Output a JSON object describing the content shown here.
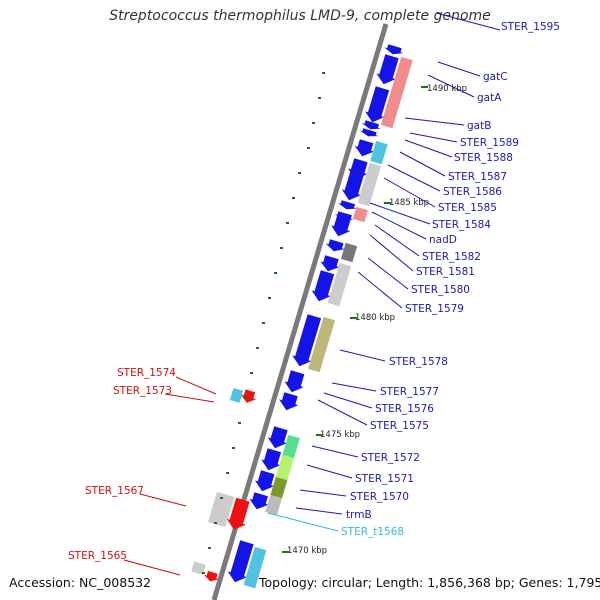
{
  "title": "Streptococcus thermophilus LMD-9, complete genome",
  "footer": {
    "accession": "Accession: NC_008532",
    "topology": "Topology: circular; Length: 1,856,368 bp; Genes: 1,795"
  },
  "ticks": [
    "1490 kbp",
    "1485 kbp",
    "1480 kbp",
    "1475 kbp",
    "1470 kbp"
  ],
  "genes_right": [
    "STER_1595",
    "gatC",
    "gatA",
    "gatB",
    "STER_1589",
    "STER_1588",
    "STER_1587",
    "STER_1586",
    "STER_1585",
    "STER_1584",
    "nadD",
    "STER_1582",
    "STER_1581",
    "STER_1580",
    "STER_1579",
    "STER_1578",
    "STER_1577",
    "STER_1576",
    "STER_1575",
    "STER_1572",
    "STER_1571",
    "STER_1570",
    "trmB"
  ],
  "rna_gene": "STER_t1568",
  "genes_left": [
    "STER_1574",
    "STER_1573",
    "STER_1567",
    "STER_1565"
  ],
  "colors": {
    "forward_arrow": "#1010e0",
    "reverse_arrow": "#ee1111",
    "label_forward": "#1a1ab0",
    "label_reverse": "#cc1111",
    "label_rna": "#33bbdd",
    "backbone": "#777777",
    "tick": "#117711"
  }
}
